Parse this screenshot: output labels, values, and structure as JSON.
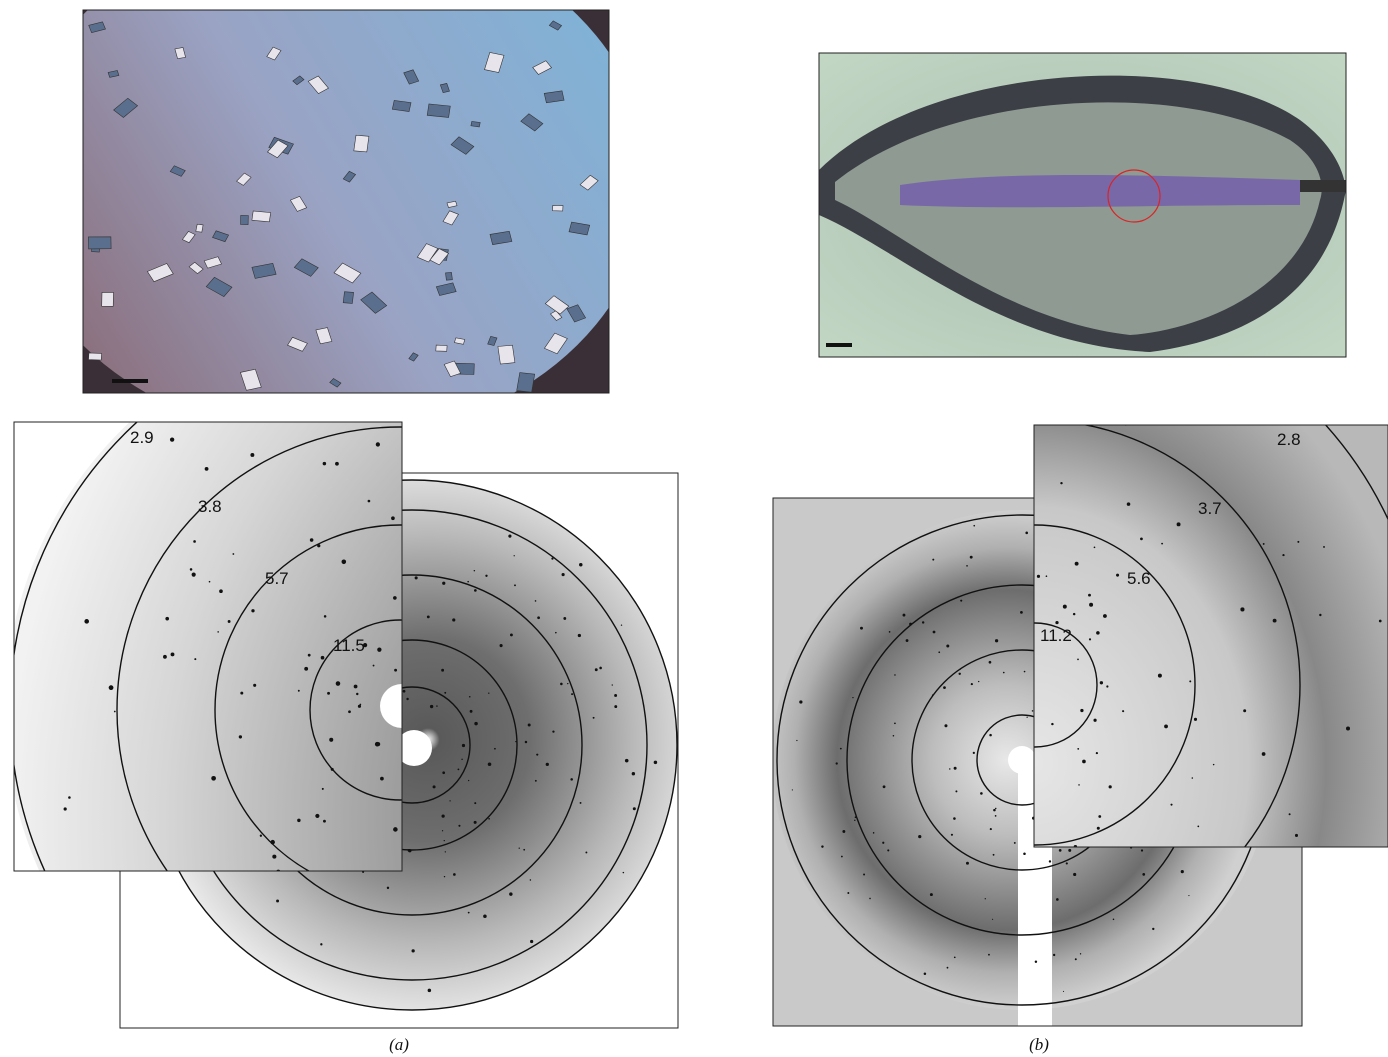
{
  "panels": [
    {
      "label": "(a)",
      "rings": [
        "2.9",
        "3.8",
        "5.7",
        "11.5"
      ]
    },
    {
      "label": "(b)",
      "rings": [
        "2.8",
        "3.7",
        "5.6",
        "11.2"
      ]
    }
  ]
}
